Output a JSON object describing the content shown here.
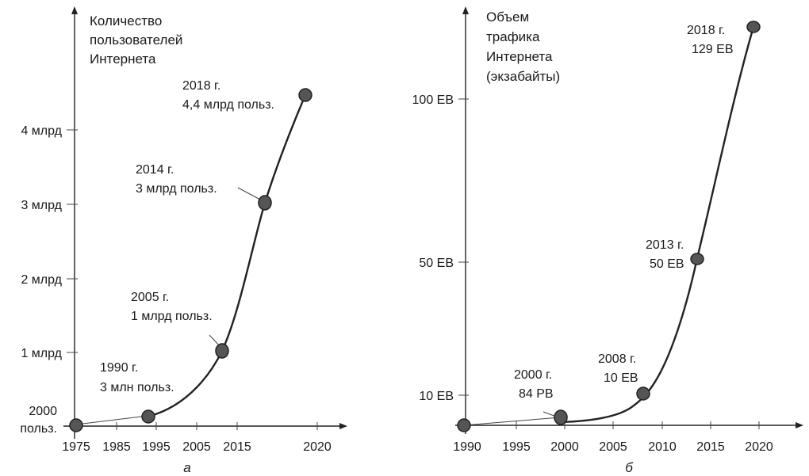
{
  "chart_data": [
    {
      "type": "line",
      "panel_label": "а",
      "y_title_lines": [
        "Количество",
        "пользователей",
        "Интернета"
      ],
      "x_ticks": [
        "1975",
        "1985",
        "1995",
        "2005",
        "2015",
        "2020"
      ],
      "y_ticks": [
        "4 млрд",
        "3 млрд",
        "2 млрд",
        "1 млрд"
      ],
      "extra_y_label_lines": [
        "2000",
        "польз."
      ],
      "points": [
        {
          "year": 1975,
          "value": 2e-06,
          "label_lines": []
        },
        {
          "year": 1990,
          "value": 0.003,
          "label_lines": [
            "1990 г.",
            "3 млн польз."
          ]
        },
        {
          "year": 2005,
          "value": 1.0,
          "label_lines": [
            "2005 г.",
            "1 млрд польз."
          ]
        },
        {
          "year": 2014,
          "value": 3.0,
          "label_lines": [
            "2014 г.",
            "3 млрд польз."
          ]
        },
        {
          "year": 2018,
          "value": 4.4,
          "label_lines": [
            "2018 г.",
            "4,4 млрд польз."
          ]
        }
      ],
      "xlabel": "",
      "ylabel": "",
      "grid": false
    },
    {
      "type": "line",
      "panel_label": "б",
      "y_title_lines": [
        "Объем",
        "трафика",
        "Интернета",
        "(экзабайты)"
      ],
      "x_ticks": [
        "1990",
        "1995",
        "2000",
        "2005",
        "2010",
        "2015",
        "2020"
      ],
      "y_ticks": [
        "100 EB",
        "50 EB",
        "10 EB"
      ],
      "points": [
        {
          "year": 1990,
          "value": 0,
          "label_lines": []
        },
        {
          "year": 2000,
          "value": 0.084,
          "label_lines": [
            "2000 г.",
            "84 PB"
          ]
        },
        {
          "year": 2008,
          "value": 10,
          "label_lines": [
            "2008 г.",
            "10 EB"
          ]
        },
        {
          "year": 2013,
          "value": 50,
          "label_lines": [
            "2013 г.",
            "50 EB"
          ]
        },
        {
          "year": 2018,
          "value": 129,
          "label_lines": [
            "2018 г.",
            "129 EB"
          ]
        }
      ],
      "xlabel": "",
      "ylabel": "",
      "grid": false
    }
  ]
}
